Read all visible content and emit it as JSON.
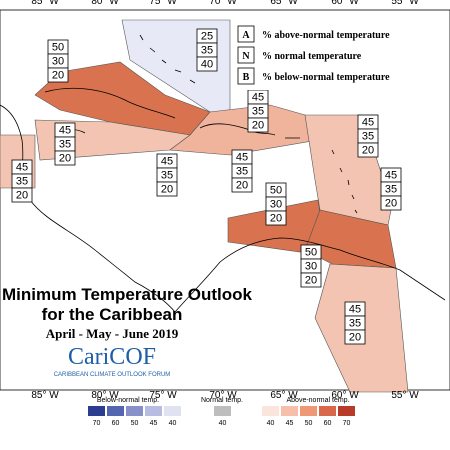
{
  "map": {
    "lon_labels_top": [
      "85° W",
      "80° W",
      "75° W",
      "70° W",
      "65° W",
      "60° W",
      "55° W"
    ],
    "lon_labels_bottom": [
      "85° W",
      "80° W",
      "75° W",
      "70° W",
      "65° W",
      "60° W",
      "55° W"
    ]
  },
  "legend": {
    "items": [
      {
        "key": "A",
        "text": "% above-normal temperature"
      },
      {
        "key": "N",
        "text": "% normal temperature"
      },
      {
        "key": "B",
        "text": "% below-normal temperature"
      }
    ]
  },
  "title": {
    "line1": "Minimum Temperature Outlook",
    "line2": "for the Caribbean",
    "period": "April - May - June 2019",
    "logo": "CariCOF",
    "logo_sub": "CARIBBEAN CLIMATE OUTLOOK FORUM"
  },
  "regions": [
    {
      "above": 25,
      "normal": 35,
      "below": 40
    },
    {
      "above": 50,
      "normal": 30,
      "below": 20
    },
    {
      "above": 45,
      "normal": 35,
      "below": 20
    },
    {
      "above": 45,
      "normal": 35,
      "below": 20
    },
    {
      "above": 45,
      "normal": 35,
      "below": 20
    },
    {
      "above": 45,
      "normal": 35,
      "below": 20
    },
    {
      "above": 45,
      "normal": 35,
      "below": 20
    },
    {
      "above": 45,
      "normal": 35,
      "below": 20
    },
    {
      "above": 45,
      "normal": 35,
      "below": 20
    },
    {
      "above": 50,
      "normal": 30,
      "below": 20
    },
    {
      "above": 50,
      "normal": 30,
      "below": 20
    },
    {
      "above": 45,
      "normal": 35,
      "below": 20
    }
  ],
  "colorbar": {
    "below_label": "Below-normal temp.",
    "below_ticks": [
      70,
      60,
      50,
      45,
      40
    ],
    "normal_label": "Normal temp.",
    "normal_ticks": [
      40
    ],
    "above_label": "Above-normal temp.",
    "above_ticks": [
      40,
      45,
      50,
      60,
      70
    ]
  }
}
